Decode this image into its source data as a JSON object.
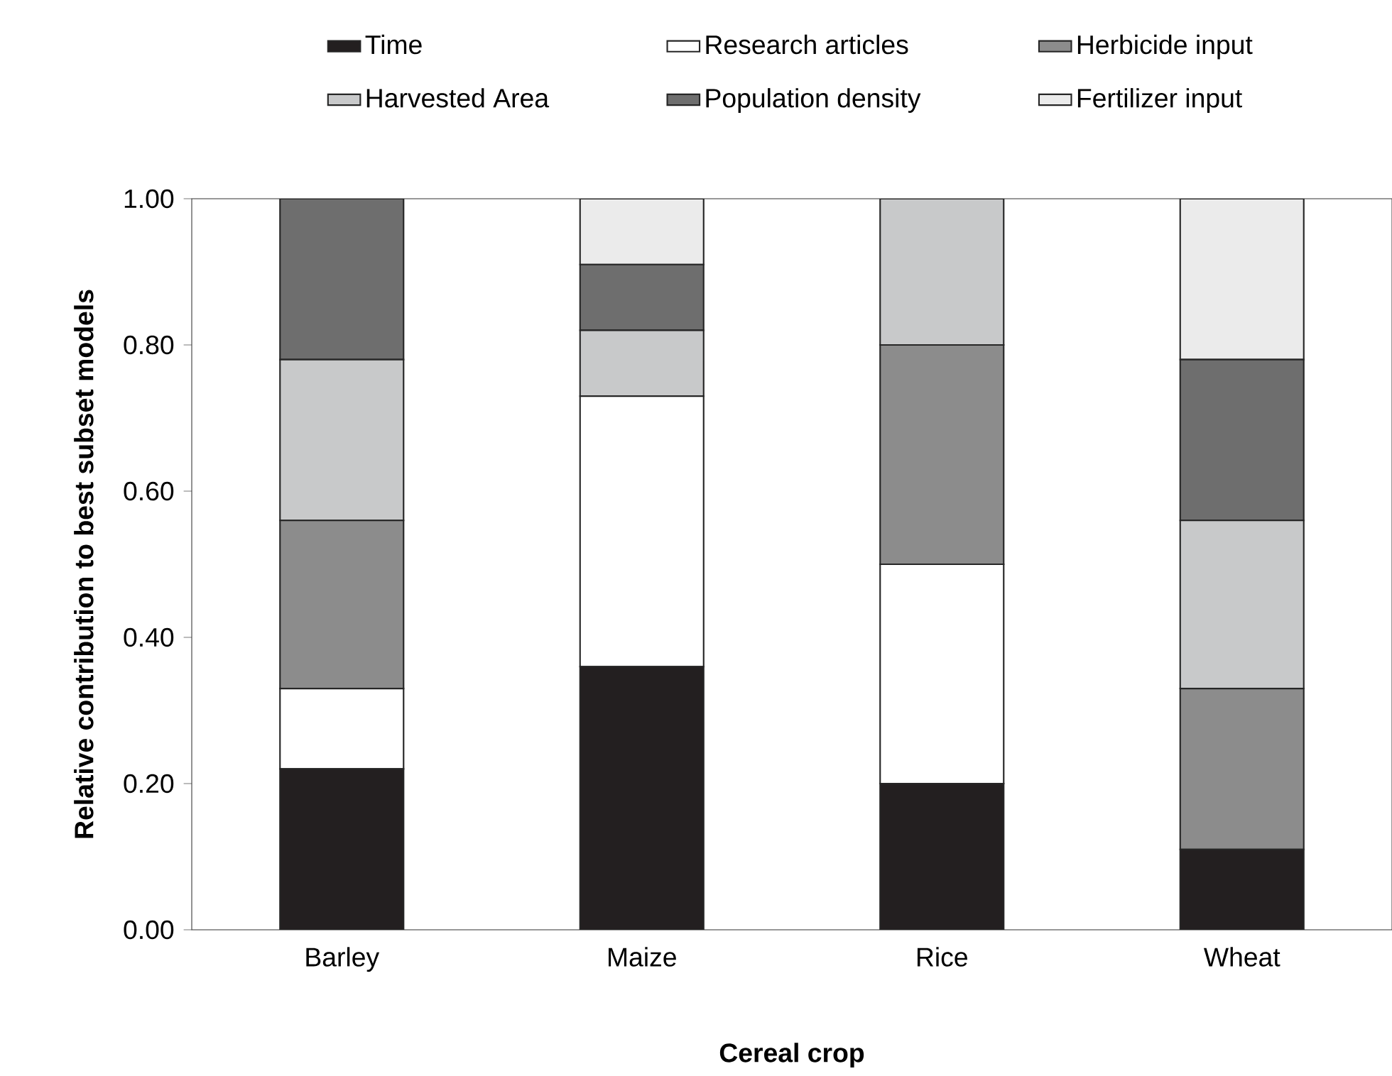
{
  "chart_data": {
    "type": "bar",
    "stacked": true,
    "xlabel": "Cereal crop",
    "ylabel": "Relative contribution to best subset models",
    "categories": [
      "Barley",
      "Maize",
      "Rice",
      "Wheat"
    ],
    "series": [
      {
        "name": "Time",
        "color": "#231f20",
        "values": [
          0.22,
          0.36,
          0.2,
          0.11
        ]
      },
      {
        "name": "Research articles",
        "color": "#ffffff",
        "values": [
          0.11,
          0.37,
          0.3,
          0
        ]
      },
      {
        "name": "Herbicide input",
        "color": "#8c8c8c",
        "values": [
          0.23,
          0,
          0.3,
          0.22
        ]
      },
      {
        "name": "Harvested Area",
        "color": "#c8c9ca",
        "values": [
          0.22,
          0.09,
          0.2,
          0.23
        ]
      },
      {
        "name": "Population density",
        "color": "#6e6e6e",
        "values": [
          0.22,
          0.09,
          0,
          0.22
        ]
      },
      {
        "name": "Fertilizer input",
        "color": "#ebebeb",
        "values": [
          0,
          0.09,
          0,
          0.22
        ]
      }
    ],
    "ylim": [
      0,
      1
    ],
    "yticks": [
      {
        "value": 0,
        "label": "0.00"
      },
      {
        "value": 0.2,
        "label": "0.20"
      },
      {
        "value": 0.4,
        "label": "0.40"
      },
      {
        "value": 0.6,
        "label": "0.60"
      },
      {
        "value": 0.8,
        "label": "0.80"
      },
      {
        "value": 1,
        "label": "1.00"
      }
    ],
    "legend": "top",
    "grid": false
  }
}
